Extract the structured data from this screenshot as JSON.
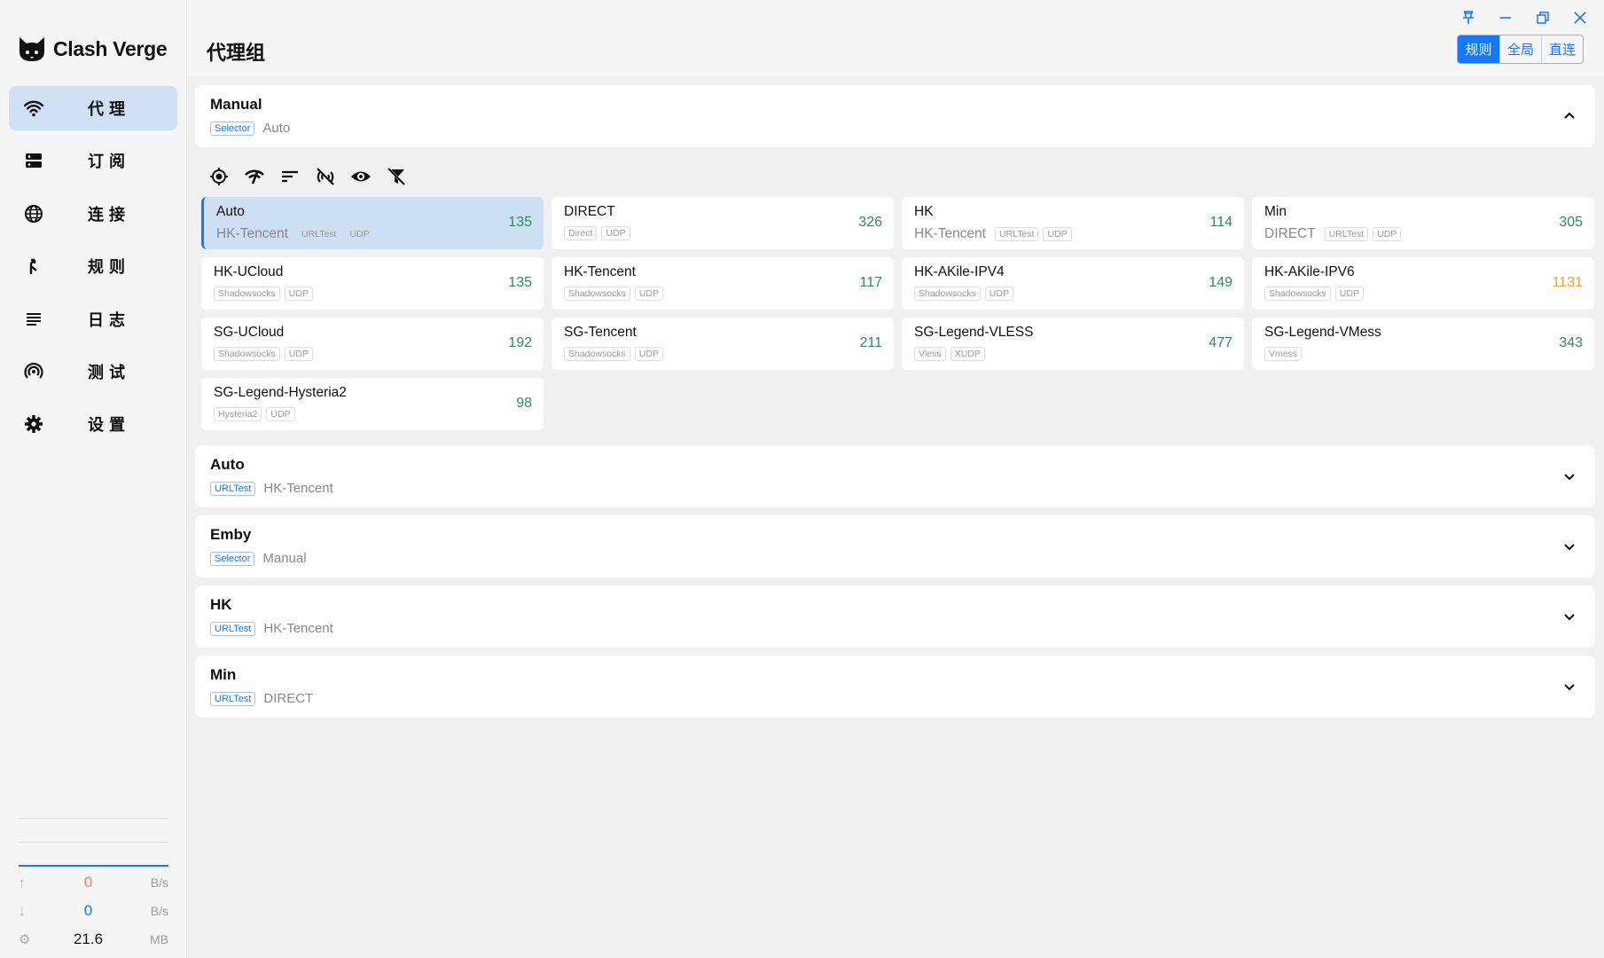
{
  "app": {
    "name": "Clash Verge"
  },
  "sidebar": {
    "items": [
      {
        "label": "代理",
        "icon": "wifi-icon",
        "active": true
      },
      {
        "label": "订阅",
        "icon": "storage-icon"
      },
      {
        "label": "连接",
        "icon": "globe-icon"
      },
      {
        "label": "规则",
        "icon": "fork-icon"
      },
      {
        "label": "日志",
        "icon": "list-icon"
      },
      {
        "label": "测试",
        "icon": "broadcast-icon"
      },
      {
        "label": "设置",
        "icon": "gear-icon"
      }
    ],
    "traffic": {
      "up": {
        "value": "0",
        "unit": "B/s",
        "color": "#f08060"
      },
      "down": {
        "value": "0",
        "unit": "B/s",
        "color": "#1677ff"
      },
      "memory": {
        "value": "21.6",
        "unit": "MB"
      }
    }
  },
  "header": {
    "title": "代理组",
    "modes": [
      {
        "label": "规则",
        "active": true
      },
      {
        "label": "全局"
      },
      {
        "label": "直连"
      }
    ]
  },
  "groups": [
    {
      "name": "Manual",
      "type": "Selector",
      "now": "Auto",
      "expanded": true
    },
    {
      "name": "Auto",
      "type": "URLTest",
      "now": "HK-Tencent"
    },
    {
      "name": "Emby",
      "type": "Selector",
      "now": "Manual"
    },
    {
      "name": "HK",
      "type": "URLTest",
      "now": "HK-Tencent"
    },
    {
      "name": "Min",
      "type": "URLTest",
      "now": "DIRECT"
    }
  ],
  "toolbar": [
    "locate-icon",
    "speed-test-icon",
    "sort-icon",
    "no-signal-icon",
    "eye-icon",
    "filter-off-icon"
  ],
  "proxies": [
    {
      "name": "Auto",
      "now": "HK-Tencent",
      "tags": [
        "URLTest",
        "UDP"
      ],
      "delay": "135",
      "selected": true
    },
    {
      "name": "DIRECT",
      "tags": [
        "Direct",
        "UDP"
      ],
      "delay": "326"
    },
    {
      "name": "HK",
      "now": "HK-Tencent",
      "tags": [
        "URLTest",
        "UDP"
      ],
      "delay": "114"
    },
    {
      "name": "Min",
      "now": "DIRECT",
      "tags": [
        "URLTest",
        "UDP"
      ],
      "delay": "305"
    },
    {
      "name": "HK-UCloud",
      "tags": [
        "Shadowsocks",
        "UDP"
      ],
      "delay": "135"
    },
    {
      "name": "HK-Tencent",
      "tags": [
        "Shadowsocks",
        "UDP"
      ],
      "delay": "117"
    },
    {
      "name": "HK-AKile-IPV4",
      "tags": [
        "Shadowsocks",
        "UDP"
      ],
      "delay": "149"
    },
    {
      "name": "HK-AKile-IPV6",
      "tags": [
        "Shadowsocks",
        "UDP"
      ],
      "delay": "1131",
      "warn": true
    },
    {
      "name": "SG-UCloud",
      "tags": [
        "Shadowsocks",
        "UDP"
      ],
      "delay": "192"
    },
    {
      "name": "SG-Tencent",
      "tags": [
        "Shadowsocks",
        "UDP"
      ],
      "delay": "211"
    },
    {
      "name": "SG-Legend-VLESS",
      "tags": [
        "Vless",
        "XUDP"
      ],
      "delay": "477"
    },
    {
      "name": "SG-Legend-VMess",
      "tags": [
        "Vmess"
      ],
      "delay": "343"
    },
    {
      "name": "SG-Legend-Hysteria2",
      "tags": [
        "Hysteria2",
        "UDP"
      ],
      "delay": "98"
    }
  ],
  "colors": {
    "accent": "#1677ff",
    "delay_good": "#2e8b57",
    "delay_warn": "#f0a030",
    "selected_bg": "#cddff2"
  }
}
